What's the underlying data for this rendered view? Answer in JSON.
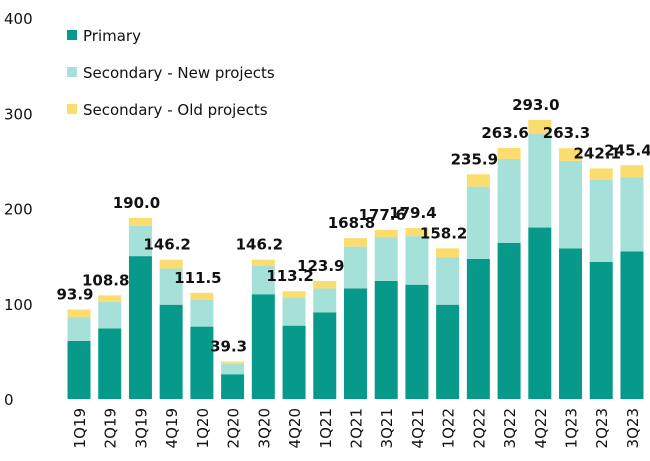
{
  "chart_data": {
    "type": "stacked_bar",
    "categories": [
      "1Q19",
      "2Q19",
      "3Q19",
      "4Q19",
      "1Q20",
      "2Q20",
      "3Q20",
      "4Q20",
      "1Q21",
      "2Q21",
      "3Q21",
      "4Q21",
      "1Q22",
      "2Q22",
      "3Q22",
      "4Q22",
      "1Q23",
      "2Q23",
      "3Q23"
    ],
    "series": [
      {
        "name": "Primary",
        "color": "#079a8b",
        "values": [
          61,
          74,
          150,
          99,
          76,
          26,
          110,
          77,
          91,
          116,
          124,
          120,
          99,
          147,
          164,
          180,
          158,
          144,
          155
        ]
      },
      {
        "name": "Secondary - New projects",
        "color": "#a5e1d8",
        "values": [
          25,
          28,
          32,
          38,
          28,
          11,
          30,
          29,
          25,
          44,
          46,
          51,
          50,
          76,
          88,
          99,
          92,
          86,
          78
        ]
      },
      {
        "name": "Secondary - Old projects",
        "color": "#fbdc6e",
        "values": [
          7.9,
          6.8,
          8,
          9.2,
          7.5,
          2.3,
          6.2,
          7.2,
          7.9,
          8.8,
          7.6,
          8.4,
          9.2,
          12.9,
          11.6,
          14,
          13.3,
          12.1,
          12.4
        ]
      }
    ],
    "totals": [
      93.9,
      108.8,
      190.0,
      146.2,
      111.5,
      39.3,
      146.2,
      113.2,
      123.9,
      168.8,
      177.6,
      179.4,
      158.2,
      235.9,
      263.6,
      293.0,
      263.3,
      242.1,
      245.4
    ],
    "total_labels": [
      "93.9",
      "108.8",
      "190.0",
      "146.2",
      "111.5",
      "39.3",
      "146.2",
      "113.2",
      "123.9",
      "168.8",
      "177.6",
      "179.4",
      "158.2",
      "235.9",
      "263.6",
      "293.0",
      "263.3",
      "242.1",
      "245.4"
    ],
    "ylim": [
      0,
      400
    ],
    "yticks": [
      0,
      100,
      200,
      300,
      400
    ],
    "grid": false,
    "legend": "upper-left"
  }
}
